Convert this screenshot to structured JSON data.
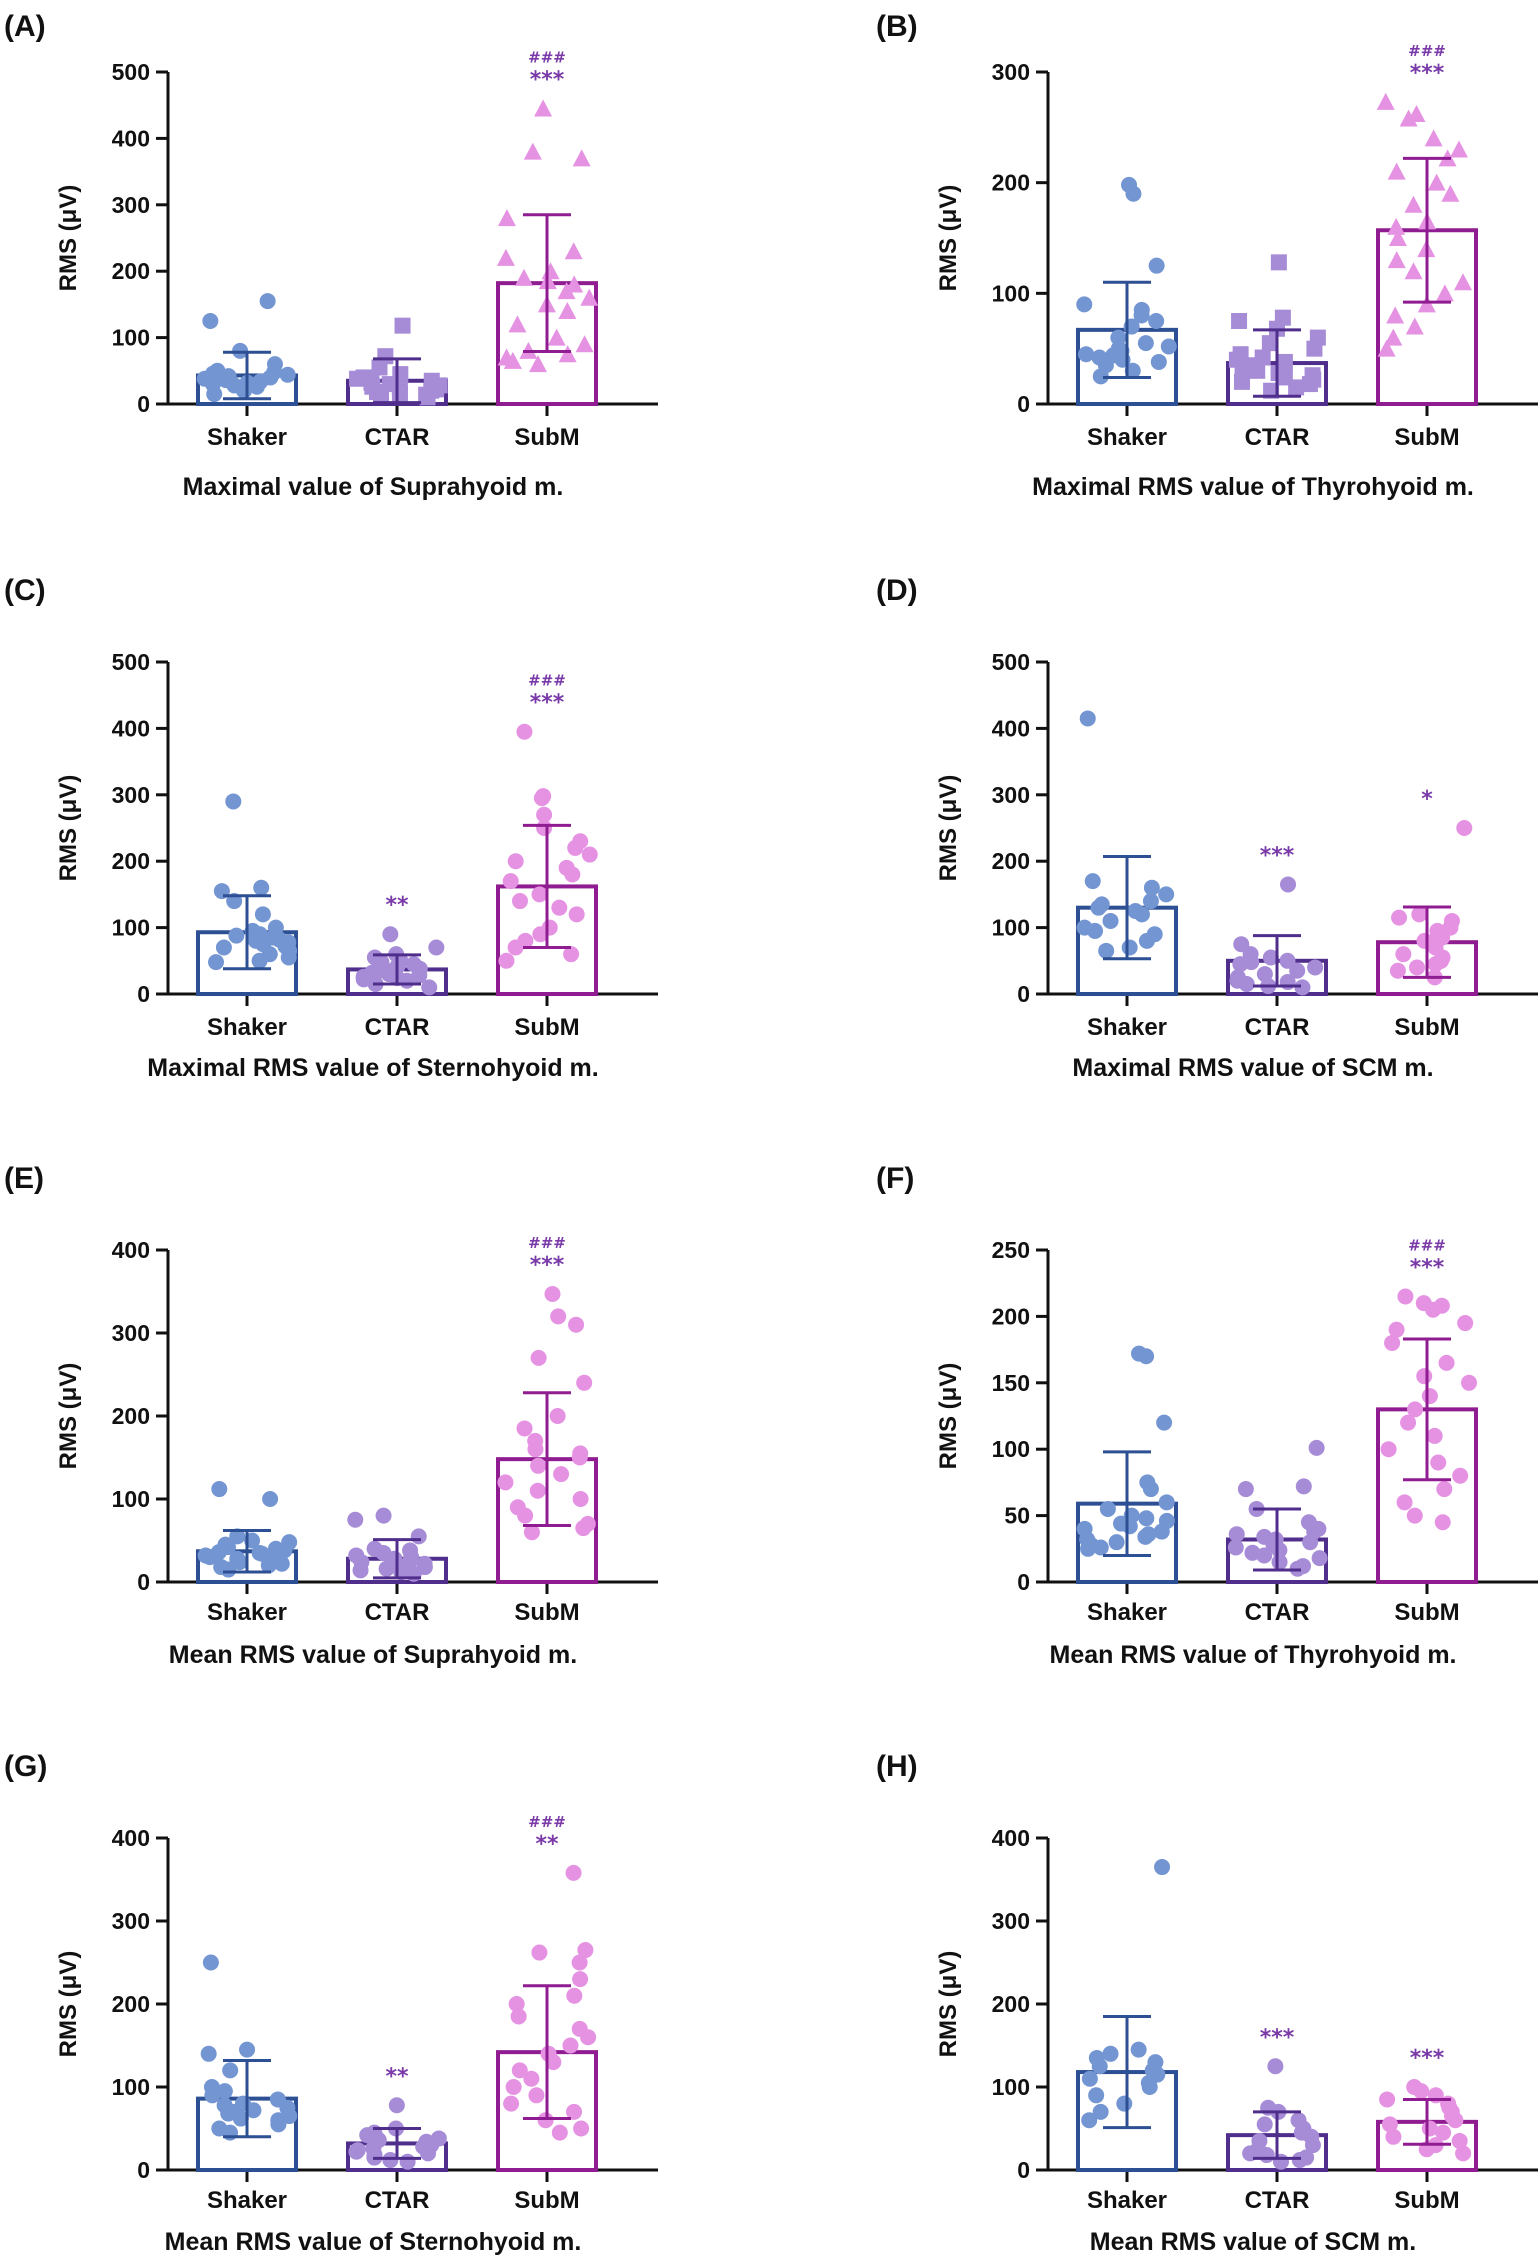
{
  "colors": {
    "Shaker": {
      "edge": "#2d4f93",
      "point": "#7395d2"
    },
    "CTAR": {
      "edge": "#4f2e8c",
      "point": "#a68bd6"
    },
    "SubM": {
      "edge": "#8f1c90",
      "point": "#e592e3"
    },
    "sig": "#7a3aa8",
    "axis": "#111111"
  },
  "chart_data": [
    {
      "type": "bar",
      "panel": "(A)",
      "title": "Maximal value of Suprahyoid m.",
      "ylabel": "RMS (μV)",
      "ylim": [
        0,
        500
      ],
      "yticks": [
        0,
        100,
        200,
        300,
        400,
        500
      ],
      "categories": [
        "Shaker",
        "CTAR",
        "SubM"
      ],
      "marker": "circle,square,triangle",
      "means": [
        43,
        35,
        182
      ],
      "sd": [
        35,
        33,
        103
      ],
      "annotations": [
        "",
        "",
        "***"
      ],
      "hash": [
        "",
        "",
        "###"
      ],
      "points": [
        [
          155,
          125,
          80,
          60,
          50,
          48,
          46,
          44,
          42,
          40,
          38,
          36,
          34,
          32,
          30,
          28,
          26,
          24,
          20,
          15
        ],
        [
          118,
          72,
          55,
          45,
          40,
          38,
          35,
          32,
          30,
          28,
          26,
          24,
          22,
          20,
          18,
          16,
          14,
          12,
          10
        ],
        [
          445,
          380,
          370,
          280,
          230,
          220,
          200,
          190,
          185,
          180,
          170,
          160,
          150,
          140,
          120,
          100,
          90,
          80,
          75,
          70,
          65,
          60
        ]
      ]
    },
    {
      "type": "bar",
      "panel": "(B)",
      "title": "Maximal RMS value of Thyrohyoid m.",
      "ylabel": "RMS (μV)",
      "ylim": [
        0,
        300
      ],
      "yticks": [
        0,
        100,
        200,
        300
      ],
      "categories": [
        "Shaker",
        "CTAR",
        "SubM"
      ],
      "marker": "circle,square,triangle",
      "means": [
        67,
        37,
        157
      ],
      "sd": [
        43,
        30,
        65
      ],
      "annotations": [
        "",
        "",
        "***"
      ],
      "hash": [
        "",
        "",
        "###"
      ],
      "points": [
        [
          198,
          190,
          125,
          90,
          85,
          80,
          75,
          70,
          60,
          55,
          52,
          50,
          48,
          46,
          45,
          44,
          42,
          40,
          38,
          35,
          30,
          25
        ],
        [
          128,
          78,
          75,
          68,
          60,
          55,
          50,
          45,
          42,
          40,
          38,
          35,
          32,
          30,
          28,
          26,
          24,
          22,
          20,
          18,
          15,
          12
        ],
        [
          273,
          262,
          258,
          240,
          230,
          222,
          210,
          200,
          190,
          180,
          165,
          160,
          150,
          140,
          130,
          120,
          110,
          100,
          90,
          80,
          70,
          60,
          50
        ]
      ]
    },
    {
      "type": "bar",
      "panel": "(C)",
      "title": "Maximal RMS value of Sternohyoid m.",
      "ylabel": "RMS (μV)",
      "ylim": [
        0,
        500
      ],
      "yticks": [
        0,
        100,
        200,
        300,
        400,
        500
      ],
      "categories": [
        "Shaker",
        "CTAR",
        "SubM"
      ],
      "marker": "circle,circle,circle",
      "means": [
        93,
        37,
        162
      ],
      "sd": [
        55,
        22,
        92
      ],
      "annotations": [
        "",
        "**",
        "***"
      ],
      "hash": [
        "",
        "",
        "###"
      ],
      "points": [
        [
          290,
          160,
          155,
          140,
          120,
          100,
          95,
          90,
          88,
          85,
          82,
          80,
          78,
          75,
          72,
          70,
          65,
          60,
          55,
          50,
          48
        ],
        [
          90,
          70,
          60,
          55,
          50,
          48,
          45,
          42,
          40,
          38,
          36,
          34,
          32,
          30,
          28,
          26,
          24,
          22,
          20,
          15,
          10
        ],
        [
          395,
          298,
          295,
          270,
          250,
          230,
          220,
          210,
          200,
          190,
          180,
          170,
          150,
          140,
          130,
          120,
          100,
          90,
          80,
          70,
          60,
          50
        ]
      ]
    },
    {
      "type": "bar",
      "panel": "(D)",
      "title": "Maximal RMS value of SCM m.",
      "ylabel": "RMS (μV)",
      "ylim": [
        0,
        500
      ],
      "yticks": [
        0,
        100,
        200,
        300,
        400,
        500
      ],
      "categories": [
        "Shaker",
        "CTAR",
        "SubM"
      ],
      "marker": "circle,circle,circle",
      "means": [
        130,
        50,
        78
      ],
      "sd": [
        77,
        38,
        53
      ],
      "annotations": [
        "",
        "***",
        "*"
      ],
      "hash": [
        "",
        "",
        ""
      ],
      "points": [
        [
          415,
          170,
          160,
          150,
          140,
          135,
          130,
          125,
          120,
          110,
          100,
          95,
          90,
          80,
          70,
          65
        ],
        [
          165,
          75,
          60,
          55,
          50,
          48,
          45,
          40,
          35,
          30,
          25,
          20,
          18,
          15,
          12,
          10
        ],
        [
          250,
          120,
          115,
          110,
          100,
          95,
          90,
          85,
          80,
          70,
          60,
          55,
          50,
          45,
          40,
          35,
          25
        ]
      ]
    },
    {
      "type": "bar",
      "panel": "(E)",
      "title": "Mean RMS value of Suprahyoid m.",
      "ylabel": "RMS (μV)",
      "ylim": [
        0,
        400
      ],
      "yticks": [
        0,
        100,
        200,
        300,
        400
      ],
      "categories": [
        "Shaker",
        "CTAR",
        "SubM"
      ],
      "marker": "circle,circle,circle",
      "means": [
        37,
        28,
        148
      ],
      "sd": [
        25,
        23,
        80
      ],
      "annotations": [
        "",
        "",
        "***"
      ],
      "hash": [
        "",
        "",
        "###"
      ],
      "points": [
        [
          112,
          100,
          55,
          50,
          48,
          45,
          42,
          40,
          38,
          36,
          35,
          34,
          32,
          30,
          28,
          26,
          24,
          22,
          20,
          18,
          15
        ],
        [
          80,
          75,
          55,
          40,
          38,
          35,
          32,
          30,
          28,
          26,
          25,
          24,
          22,
          20,
          18,
          16,
          14,
          12,
          10
        ],
        [
          347,
          320,
          310,
          270,
          240,
          200,
          185,
          170,
          160,
          155,
          150,
          140,
          130,
          120,
          110,
          100,
          90,
          80,
          70,
          65,
          60
        ]
      ]
    },
    {
      "type": "bar",
      "panel": "(F)",
      "title": "Mean RMS value of Thyrohyoid m.",
      "ylabel": "RMS (μV)",
      "ylim": [
        0,
        250
      ],
      "yticks": [
        0,
        50,
        100,
        150,
        200,
        250
      ],
      "categories": [
        "Shaker",
        "CTAR",
        "SubM"
      ],
      "marker": "circle,circle,circle",
      "means": [
        59,
        32,
        130
      ],
      "sd": [
        39,
        23,
        53
      ],
      "annotations": [
        "",
        "",
        "***"
      ],
      "hash": [
        "",
        "",
        "###"
      ],
      "points": [
        [
          172,
          170,
          120,
          75,
          70,
          60,
          55,
          50,
          48,
          46,
          44,
          42,
          40,
          38,
          36,
          34,
          32,
          30,
          28,
          26,
          25
        ],
        [
          101,
          72,
          70,
          55,
          45,
          40,
          38,
          36,
          34,
          32,
          30,
          28,
          26,
          24,
          22,
          20,
          18,
          15,
          12,
          10
        ],
        [
          215,
          210,
          208,
          205,
          195,
          190,
          180,
          165,
          155,
          150,
          140,
          130,
          120,
          110,
          100,
          90,
          80,
          70,
          60,
          50,
          45
        ]
      ]
    },
    {
      "type": "bar",
      "panel": "(G)",
      "title": "Mean RMS value of Sternohyoid m.",
      "ylabel": "RMS (μV)",
      "ylim": [
        0,
        400
      ],
      "yticks": [
        0,
        100,
        200,
        300,
        400
      ],
      "categories": [
        "Shaker",
        "CTAR",
        "SubM"
      ],
      "marker": "circle,circle,circle",
      "means": [
        86,
        32,
        142
      ],
      "sd": [
        46,
        18,
        80
      ],
      "annotations": [
        "",
        "**",
        "**"
      ],
      "hash": [
        "",
        "",
        "###"
      ],
      "points": [
        [
          250,
          145,
          140,
          120,
          100,
          95,
          90,
          85,
          80,
          78,
          75,
          72,
          70,
          68,
          65,
          62,
          60,
          55,
          50,
          45
        ],
        [
          78,
          50,
          45,
          42,
          40,
          38,
          36,
          34,
          32,
          30,
          28,
          26,
          24,
          22,
          20,
          18,
          15,
          12,
          10
        ],
        [
          358,
          265,
          262,
          250,
          230,
          210,
          200,
          185,
          170,
          160,
          150,
          140,
          130,
          120,
          110,
          100,
          90,
          80,
          70,
          60,
          50,
          45
        ]
      ]
    },
    {
      "type": "bar",
      "panel": "(H)",
      "title": "Mean RMS value of SCM m.",
      "ylabel": "RMS (μV)",
      "ylim": [
        0,
        400
      ],
      "yticks": [
        0,
        100,
        200,
        300,
        400
      ],
      "categories": [
        "Shaker",
        "CTAR",
        "SubM"
      ],
      "marker": "circle,circle,circle",
      "means": [
        118,
        42,
        58
      ],
      "sd": [
        67,
        28,
        27
      ],
      "annotations": [
        "",
        "***",
        "***"
      ],
      "hash": [
        "",
        "",
        ""
      ],
      "points": [
        [
          365,
          145,
          140,
          135,
          130,
          125,
          120,
          115,
          110,
          105,
          100,
          90,
          80,
          70,
          60
        ],
        [
          125,
          75,
          70,
          60,
          55,
          50,
          45,
          40,
          35,
          30,
          25,
          20,
          18,
          15,
          12,
          10
        ],
        [
          100,
          95,
          90,
          85,
          80,
          75,
          70,
          65,
          60,
          55,
          50,
          45,
          40,
          35,
          30,
          25,
          20
        ]
      ]
    }
  ]
}
